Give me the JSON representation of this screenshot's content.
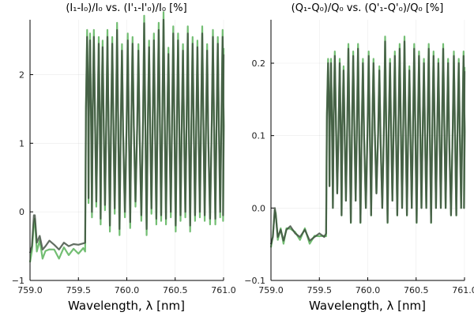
{
  "chart_data": [
    {
      "type": "line",
      "title": "(I₁-I₀)/I₀ vs. (I'₁-I'₀)/I₀ [%]",
      "xlabel": "Wavelength, λ [nm]",
      "ylabel": "",
      "xlim": [
        759.0,
        761.0
      ],
      "ylim": [
        -1.0,
        2.8
      ],
      "xticks": [
        759.0,
        759.5,
        760.0,
        760.5,
        761.0
      ],
      "xtick_labels": [
        "759.0",
        "759.5",
        "760.0",
        "760.5",
        "761.0"
      ],
      "yticks": [
        -1,
        0,
        1,
        2
      ],
      "ytick_labels": [
        "−1",
        "0",
        "1",
        "2"
      ],
      "grid": true,
      "legend": "none",
      "baseline_segments": [
        {
          "x": [
            759.0,
            759.02,
            759.04,
            759.05,
            759.07,
            759.1,
            759.13,
            759.16,
            759.2,
            759.25,
            759.3,
            759.35,
            759.4,
            759.45,
            759.5,
            759.55,
            759.57
          ],
          "y": [
            -0.6,
            -0.5,
            -0.05,
            -0.05,
            -0.45,
            -0.35,
            -0.55,
            -0.5,
            -0.42,
            -0.48,
            -0.55,
            -0.45,
            -0.5,
            -0.47,
            -0.48,
            -0.46,
            -0.45
          ]
        }
      ],
      "peaks": {
        "positions": [
          759.59,
          759.62,
          759.66,
          759.71,
          759.75,
          759.8,
          759.85,
          759.9,
          759.95,
          760.01,
          760.06,
          760.12,
          760.18,
          760.23,
          760.28,
          760.33,
          760.38,
          760.43,
          760.48,
          760.53,
          760.58,
          760.63,
          760.68,
          760.73,
          760.78,
          760.83,
          760.89,
          760.94,
          760.99
        ],
        "heights": [
          2.55,
          2.5,
          2.55,
          2.45,
          2.4,
          2.55,
          2.45,
          2.65,
          2.35,
          2.5,
          2.45,
          2.35,
          2.75,
          2.4,
          2.5,
          2.65,
          2.8,
          2.3,
          2.6,
          2.5,
          2.35,
          2.6,
          2.45,
          2.4,
          2.6,
          2.35,
          2.55,
          2.45,
          2.55
        ],
        "troughs": [
          0.2,
          0.0,
          0.15,
          -0.1,
          0.1,
          -0.2,
          0.05,
          -0.25,
          0.0,
          -0.15,
          0.15,
          -0.05,
          -0.25,
          0.05,
          -0.1,
          -0.05,
          -0.1,
          0.0,
          -0.2,
          -0.05,
          0.0,
          -0.2,
          -0.05,
          0.0,
          -0.05,
          -0.1,
          -0.1,
          0.0,
          -0.05
        ]
      },
      "series": [
        {
          "color": "#5bb35b",
          "opacity": 0.85,
          "scale": 1.04,
          "offset": -0.08
        },
        {
          "color": "#3b4a3b",
          "opacity": 0.8,
          "scale": 1.0,
          "offset": 0.0
        }
      ]
    },
    {
      "type": "line",
      "title": "(Q₁-Q₀)/Q₀ vs. (Q'₁-Q'₀)/Q₀ [%]",
      "xlabel": "Wavelength, λ [nm]",
      "ylabel": "",
      "xlim": [
        759.0,
        761.0
      ],
      "ylim": [
        -0.1,
        0.26
      ],
      "xticks": [
        759.0,
        759.5,
        760.0,
        760.5,
        761.0
      ],
      "xtick_labels": [
        "759.0",
        "759.5",
        "760.0",
        "760.5",
        "761.0"
      ],
      "yticks": [
        -0.1,
        0.0,
        0.1,
        0.2
      ],
      "ytick_labels": [
        "−0.1",
        "0.0",
        "0.1",
        "0.2"
      ],
      "grid": true,
      "legend": "none",
      "baseline_segments": [
        {
          "x": [
            759.0,
            759.02,
            759.04,
            759.05,
            759.07,
            759.1,
            759.13,
            759.16,
            759.2,
            759.25,
            759.3,
            759.35,
            759.4,
            759.45,
            759.5,
            759.55,
            759.57
          ],
          "y": [
            -0.05,
            -0.04,
            0.0,
            -0.01,
            -0.04,
            -0.03,
            -0.045,
            -0.03,
            -0.025,
            -0.035,
            -0.04,
            -0.03,
            -0.045,
            -0.04,
            -0.035,
            -0.04,
            -0.035
          ]
        }
      ],
      "peaks": {
        "positions": [
          759.59,
          759.62,
          759.66,
          759.71,
          759.75,
          759.8,
          759.85,
          759.9,
          759.95,
          760.01,
          760.06,
          760.12,
          760.18,
          760.23,
          760.28,
          760.33,
          760.38,
          760.43,
          760.48,
          760.53,
          760.58,
          760.63,
          760.68,
          760.73,
          760.78,
          760.83,
          760.89,
          760.94,
          760.99
        ],
        "heights": [
          0.2,
          0.2,
          0.21,
          0.2,
          0.19,
          0.22,
          0.21,
          0.22,
          0.2,
          0.21,
          0.2,
          0.19,
          0.23,
          0.2,
          0.21,
          0.22,
          0.23,
          0.19,
          0.22,
          0.21,
          0.2,
          0.22,
          0.21,
          0.2,
          0.22,
          0.2,
          0.21,
          0.2,
          0.21
        ],
        "troughs": [
          0.03,
          0.0,
          0.02,
          -0.01,
          0.01,
          -0.02,
          0.01,
          -0.02,
          0.0,
          -0.01,
          0.02,
          0.0,
          -0.02,
          0.01,
          -0.01,
          0.0,
          -0.01,
          0.0,
          -0.02,
          0.0,
          0.0,
          -0.02,
          0.0,
          0.0,
          0.0,
          -0.01,
          -0.01,
          0.0,
          0.0
        ]
      },
      "series": [
        {
          "color": "#5bb35b",
          "opacity": 0.85,
          "scale": 1.03,
          "offset": 0.0
        },
        {
          "color": "#3b4a3b",
          "opacity": 0.8,
          "scale": 1.0,
          "offset": 0.0
        }
      ]
    }
  ]
}
